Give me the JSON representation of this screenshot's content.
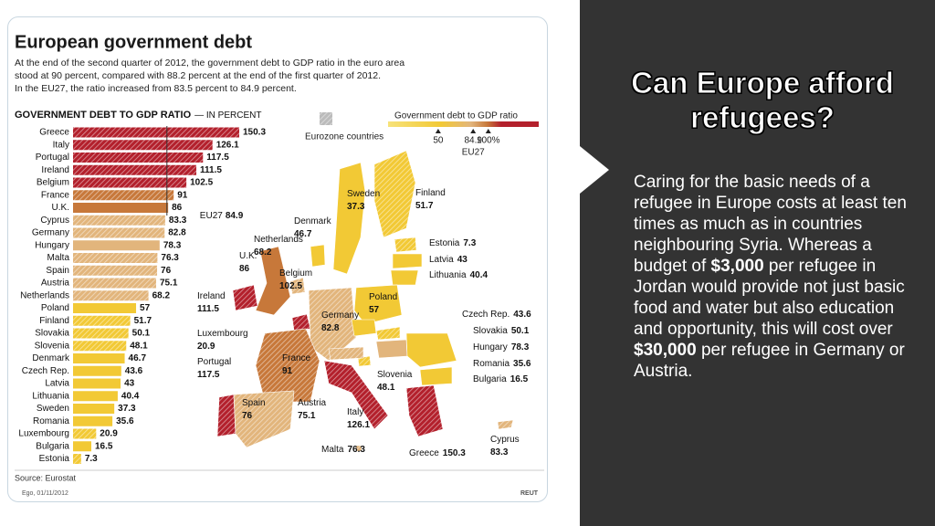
{
  "chart_data": {
    "type": "bar",
    "title": "European government debt",
    "subtitle": [
      "At the end of the second quarter of 2012, the government debt to GDP ratio in the euro area",
      "stood at 90 percent, compared with 88.2 percent at the end of the first quarter of 2012.",
      "In the EU27, the ratio increased from 83.5 percent to 84.9 percent."
    ],
    "axis_label": "GOVERNMENT DEBT TO GDP RATIO",
    "axis_unit": "— IN PERCENT",
    "categories": [
      "Greece",
      "Italy",
      "Portugal",
      "Ireland",
      "Belgium",
      "France",
      "U.K.",
      "Cyprus",
      "Germany",
      "Hungary",
      "Malta",
      "Spain",
      "Austria",
      "Netherlands",
      "Poland",
      "Finland",
      "Slovakia",
      "Slovenia",
      "Denmark",
      "Czech Rep.",
      "Latvia",
      "Lithuania",
      "Sweden",
      "Romania",
      "Luxembourg",
      "Bulgaria",
      "Estonia"
    ],
    "values": [
      150.3,
      126.1,
      117.5,
      111.5,
      102.5,
      91,
      86,
      83.3,
      82.8,
      78.3,
      76.3,
      76,
      75.1,
      68.2,
      57,
      51.7,
      50.1,
      48.1,
      46.7,
      43.6,
      43,
      40.4,
      37.3,
      35.6,
      20.9,
      16.5,
      7.3
    ],
    "colors": [
      "#b3202c",
      "#b3202c",
      "#b3202c",
      "#b3202c",
      "#b3202c",
      "#c7783a",
      "#c7783a",
      "#e2b57c",
      "#e2b57c",
      "#e2b57c",
      "#e2b57c",
      "#e2b57c",
      "#e2b57c",
      "#e2b57c",
      "#f2c935",
      "#f2c935",
      "#f2c935",
      "#f2c935",
      "#f2c935",
      "#f2c935",
      "#f2c935",
      "#f2c935",
      "#f2c935",
      "#f2c935",
      "#f2c935",
      "#f2c935",
      "#f2c935"
    ],
    "eurozone": [
      true,
      true,
      true,
      true,
      true,
      true,
      false,
      true,
      true,
      false,
      true,
      true,
      true,
      true,
      false,
      true,
      true,
      true,
      false,
      false,
      false,
      false,
      false,
      false,
      true,
      false,
      true
    ],
    "xlim": [
      0,
      150.3
    ],
    "reference": {
      "label": "EU27",
      "value": 84.9
    },
    "legend": {
      "title": "Government debt to GDP ratio",
      "ticks": [
        50,
        84.9,
        {
          "value": 100,
          "label": "100%"
        }
      ],
      "note": "EU27",
      "range": [
        0,
        150.3
      ],
      "hatch_label": "Eurozone countries"
    },
    "map_labels": [
      {
        "name": "Sweden",
        "value": 37.3
      },
      {
        "name": "Finland",
        "value": 51.7
      },
      {
        "name": "Denmark",
        "value": 46.7
      },
      {
        "name": "Estonia",
        "value": 7.3
      },
      {
        "name": "Latvia",
        "value": 43
      },
      {
        "name": "Lithuania",
        "value": 40.4
      },
      {
        "name": "Netherlands",
        "value": 68.2
      },
      {
        "name": "U.K.",
        "value": 86
      },
      {
        "name": "Belgium",
        "value": 102.5
      },
      {
        "name": "Ireland",
        "value": 111.5
      },
      {
        "name": "Poland",
        "value": 57
      },
      {
        "name": "Germany",
        "value": 82.8
      },
      {
        "name": "Czech Rep.",
        "value": 43.6
      },
      {
        "name": "Slovakia",
        "value": 50.1
      },
      {
        "name": "Luxembourg",
        "value": 20.9
      },
      {
        "name": "Hungary",
        "value": 78.3
      },
      {
        "name": "France",
        "value": 91
      },
      {
        "name": "Romania",
        "value": 35.6
      },
      {
        "name": "Portugal",
        "value": 117.5
      },
      {
        "name": "Slovenia",
        "value": 48.1
      },
      {
        "name": "Bulgaria",
        "value": 16.5
      },
      {
        "name": "Spain",
        "value": 76
      },
      {
        "name": "Austria",
        "value": 75.1
      },
      {
        "name": "Italy",
        "value": 126.1
      },
      {
        "name": "Cyprus",
        "value": 83.3
      },
      {
        "name": "Malta",
        "value": 76.3
      },
      {
        "name": "Greece",
        "value": 150.3
      }
    ],
    "source": "Source: Eurostat",
    "credit": "Ego, 01/11/2012",
    "agency": "REUT"
  },
  "slide": {
    "title": "Can Europe afford refugees?",
    "body": [
      "Caring for the basic needs of a refugee in Europe costs at least ten times as much as in countries neighbouring Syria. Whereas a budget of ",
      "$3,000",
      " per refugee in Jordan would provide not just basic food and water but also education and opportunity, this will cost over ",
      "$30,000",
      " per refugee in Germany or Austria."
    ]
  }
}
